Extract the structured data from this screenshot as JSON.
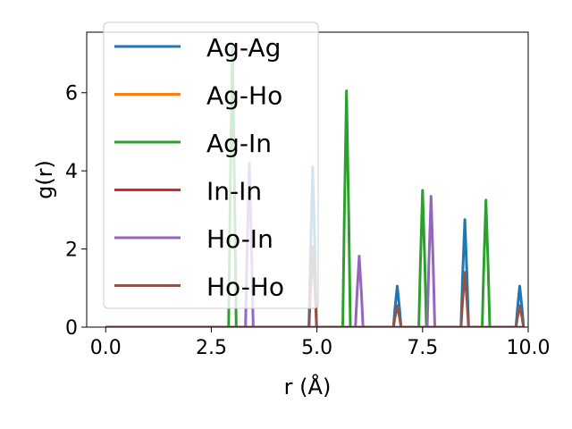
{
  "chart_data": {
    "type": "line",
    "xlabel": "r (Å)",
    "ylabel": "g(r)",
    "xlim": [
      -0.45,
      10.0
    ],
    "ylim": [
      0,
      7.55
    ],
    "x_ticks": [
      "0.0",
      "2.5",
      "5.0",
      "7.5",
      "10.0"
    ],
    "y_ticks": [
      "0",
      "2",
      "4",
      "6"
    ],
    "x_tick_values": [
      0,
      2.5,
      5.0,
      7.5,
      10.0
    ],
    "y_tick_values": [
      0,
      2,
      4,
      6
    ],
    "grid": false,
    "legend_position": "upper-left",
    "series": [
      {
        "name": "Ag-Ag",
        "color": "#1f77b4",
        "peaks": [
          [
            4.9,
            4.1
          ],
          [
            6.9,
            1.05
          ],
          [
            8.5,
            2.75
          ],
          [
            9.8,
            1.05
          ]
        ]
      },
      {
        "name": "Ag-Ho",
        "color": "#ff7f0e",
        "peaks": []
      },
      {
        "name": "Ag-In",
        "color": "#2ca02c",
        "peaks": [
          [
            3.0,
            7.2
          ],
          [
            5.7,
            6.05
          ],
          [
            7.5,
            3.5
          ],
          [
            9.0,
            3.25
          ]
        ]
      },
      {
        "name": "In-In",
        "color": "#d62728",
        "peaks": []
      },
      {
        "name": "Ho-In",
        "color": "#9467bd",
        "peaks": [
          [
            3.4,
            4.2
          ],
          [
            6.0,
            1.82
          ],
          [
            7.7,
            3.35
          ]
        ]
      },
      {
        "name": "Ho-Ho",
        "color": "#8c564b",
        "peaks": [
          [
            4.9,
            2.05
          ],
          [
            6.9,
            0.55
          ],
          [
            8.5,
            1.4
          ],
          [
            9.8,
            0.55
          ]
        ]
      }
    ]
  }
}
